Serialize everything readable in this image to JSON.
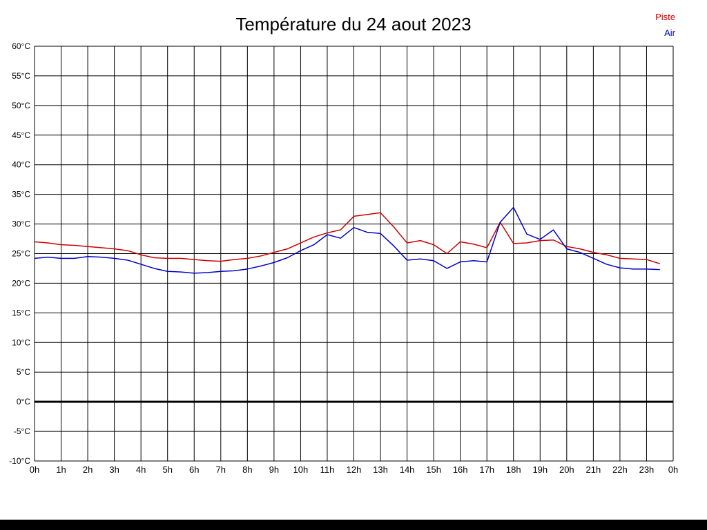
{
  "page": {
    "background": "#ffffff",
    "footer_bar_color": "#000000"
  },
  "header": {
    "title": "Température du 24 aout 2023"
  },
  "legend": [
    {
      "label": "Piste",
      "color": "#cc0000"
    },
    {
      "label": "Air",
      "color": "#0000cc"
    }
  ],
  "chart_data": {
    "type": "line",
    "title": "Température du 24 aout 2023",
    "xlabel": "",
    "ylabel": "",
    "xlim": [
      0,
      24
    ],
    "ylim": [
      -10,
      60
    ],
    "grid": true,
    "grid_color": "#000000",
    "zero_line": {
      "value": 0,
      "color": "#000000",
      "width": 3
    },
    "legend_position": "top-right",
    "x_tick_labels": [
      "0h",
      "1h",
      "2h",
      "3h",
      "4h",
      "5h",
      "6h",
      "7h",
      "8h",
      "9h",
      "10h",
      "11h",
      "12h",
      "13h",
      "14h",
      "15h",
      "16h",
      "17h",
      "18h",
      "19h",
      "20h",
      "21h",
      "22h",
      "23h",
      "0h"
    ],
    "y_ticks": [
      60,
      55,
      50,
      45,
      40,
      35,
      30,
      25,
      20,
      15,
      10,
      5,
      0,
      -5,
      -10
    ],
    "y_tick_labels": [
      "60°C",
      "55°C",
      "50°C",
      "45°C",
      "40°C",
      "35°C",
      "30°C",
      "25°C",
      "20°C",
      "15°C",
      "10°C",
      "5°C",
      "0°C",
      "-5°C",
      "-10°C"
    ],
    "x": [
      0,
      0.5,
      1,
      1.5,
      2,
      2.5,
      3,
      3.5,
      4,
      4.5,
      5,
      5.5,
      6,
      6.5,
      7,
      7.5,
      8,
      8.5,
      9,
      9.5,
      10,
      10.5,
      11,
      11.5,
      12,
      12.5,
      13,
      13.5,
      14,
      14.5,
      15,
      15.5,
      16,
      16.5,
      17,
      17.5,
      18,
      18.5,
      19,
      19.5,
      20,
      20.5,
      21,
      21.5,
      22,
      22.5,
      23,
      23.5
    ],
    "series": [
      {
        "name": "Piste",
        "color": "#cc0000",
        "values": [
          27.0,
          26.8,
          26.5,
          26.4,
          26.2,
          26.0,
          25.8,
          25.5,
          24.8,
          24.3,
          24.2,
          24.2,
          24.0,
          23.8,
          23.7,
          24.0,
          24.2,
          24.6,
          25.2,
          25.8,
          26.8,
          27.8,
          28.5,
          29.0,
          31.3,
          31.6,
          31.9,
          29.5,
          26.8,
          27.2,
          26.5,
          25.0,
          27.0,
          26.6,
          26.0,
          30.3,
          26.7,
          26.8,
          27.2,
          27.3,
          26.2,
          25.8,
          25.2,
          24.8,
          24.2,
          24.1,
          24.0,
          23.3
        ]
      },
      {
        "name": "Air",
        "color": "#0000cc",
        "values": [
          24.2,
          24.4,
          24.2,
          24.2,
          24.5,
          24.4,
          24.2,
          23.9,
          23.2,
          22.5,
          22.0,
          21.9,
          21.7,
          21.8,
          22.0,
          22.1,
          22.4,
          22.9,
          23.5,
          24.3,
          25.5,
          26.5,
          28.2,
          27.6,
          29.4,
          28.6,
          28.4,
          26.3,
          23.9,
          24.1,
          23.8,
          22.5,
          23.6,
          23.8,
          23.6,
          30.3,
          32.8,
          28.3,
          27.4,
          29.0,
          25.8,
          25.2,
          24.2,
          23.2,
          22.6,
          22.4,
          22.4,
          22.3
        ]
      }
    ]
  }
}
